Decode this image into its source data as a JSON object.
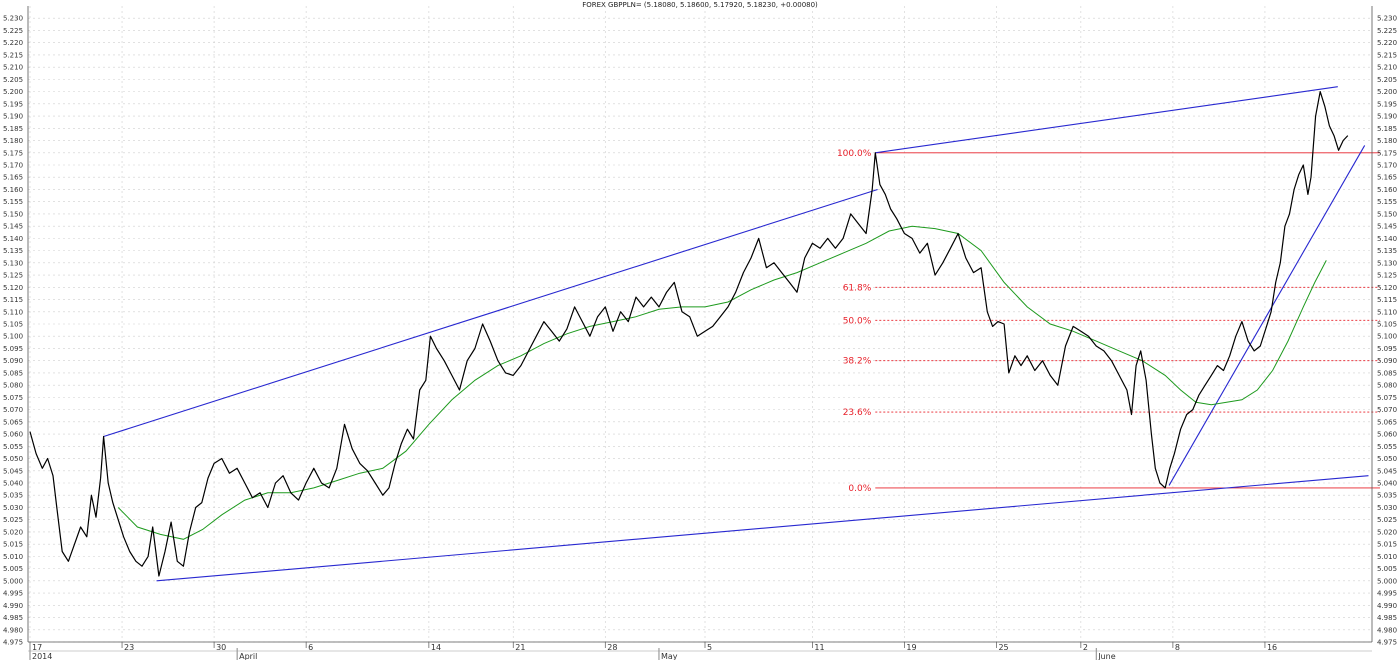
{
  "chart_data": {
    "type": "line",
    "title": "FOREX GBPPLN= (5.18080, 5.18600, 5.17920, 5.18230, +0.00080)",
    "xlabel": "",
    "ylabel": "",
    "ylim": [
      4.975,
      5.235
    ],
    "y_tick_step": 0.005,
    "grid": true,
    "price_series": {
      "name": "GBPPLN",
      "color": "#000000",
      "points": [
        [
          0,
          5.061
        ],
        [
          0.8,
          5.052
        ],
        [
          1.6,
          5.046
        ],
        [
          2.3,
          5.05
        ],
        [
          3.0,
          5.043
        ],
        [
          3.5,
          5.03
        ],
        [
          4.2,
          5.012
        ],
        [
          5.0,
          5.008
        ],
        [
          5.8,
          5.015
        ],
        [
          6.6,
          5.022
        ],
        [
          7.4,
          5.018
        ],
        [
          8.0,
          5.035
        ],
        [
          8.6,
          5.026
        ],
        [
          9.2,
          5.042
        ],
        [
          9.6,
          5.059
        ],
        [
          10.2,
          5.04
        ],
        [
          10.8,
          5.032
        ],
        [
          11.5,
          5.025
        ],
        [
          12.2,
          5.018
        ],
        [
          13.0,
          5.012
        ],
        [
          13.8,
          5.008
        ],
        [
          14.6,
          5.006
        ],
        [
          15.4,
          5.01
        ],
        [
          16.0,
          5.022
        ],
        [
          16.8,
          5.002
        ],
        [
          17.6,
          5.012
        ],
        [
          18.4,
          5.024
        ],
        [
          19.2,
          5.008
        ],
        [
          20.0,
          5.006
        ],
        [
          20.8,
          5.02
        ],
        [
          21.6,
          5.03
        ],
        [
          22.4,
          5.032
        ],
        [
          23.2,
          5.042
        ],
        [
          24.0,
          5.048
        ],
        [
          25.0,
          5.05
        ],
        [
          26.0,
          5.044
        ],
        [
          27.0,
          5.046
        ],
        [
          28.0,
          5.04
        ],
        [
          29.0,
          5.034
        ],
        [
          30.0,
          5.036
        ],
        [
          31.0,
          5.03
        ],
        [
          32.0,
          5.04
        ],
        [
          33.0,
          5.043
        ],
        [
          34.0,
          5.036
        ],
        [
          35.0,
          5.033
        ],
        [
          36.0,
          5.04
        ],
        [
          37.0,
          5.046
        ],
        [
          38.0,
          5.04
        ],
        [
          39.0,
          5.038
        ],
        [
          40.0,
          5.046
        ],
        [
          41.0,
          5.064
        ],
        [
          42.0,
          5.054
        ],
        [
          43.0,
          5.048
        ],
        [
          44.0,
          5.045
        ],
        [
          45.0,
          5.04
        ],
        [
          46.0,
          5.035
        ],
        [
          46.8,
          5.038
        ],
        [
          47.6,
          5.048
        ],
        [
          48.4,
          5.056
        ],
        [
          49.2,
          5.062
        ],
        [
          50.0,
          5.058
        ],
        [
          50.8,
          5.078
        ],
        [
          51.6,
          5.082
        ],
        [
          52.2,
          5.1
        ],
        [
          53.0,
          5.095
        ],
        [
          54.0,
          5.09
        ],
        [
          55.0,
          5.084
        ],
        [
          56.0,
          5.078
        ],
        [
          57.0,
          5.09
        ],
        [
          58.0,
          5.095
        ],
        [
          59.0,
          5.105
        ],
        [
          60.0,
          5.098
        ],
        [
          61.0,
          5.09
        ],
        [
          62.0,
          5.085
        ],
        [
          63.0,
          5.084
        ],
        [
          64.0,
          5.088
        ],
        [
          65.0,
          5.094
        ],
        [
          66.0,
          5.1
        ],
        [
          67.0,
          5.106
        ],
        [
          68.0,
          5.102
        ],
        [
          69.0,
          5.098
        ],
        [
          70.0,
          5.103
        ],
        [
          71.0,
          5.112
        ],
        [
          72.0,
          5.106
        ],
        [
          73.0,
          5.1
        ],
        [
          74.0,
          5.108
        ],
        [
          75.0,
          5.112
        ],
        [
          76.0,
          5.102
        ],
        [
          77.0,
          5.11
        ],
        [
          78.0,
          5.106
        ],
        [
          79.0,
          5.116
        ],
        [
          80.0,
          5.112
        ],
        [
          81.0,
          5.116
        ],
        [
          82.0,
          5.112
        ],
        [
          83.0,
          5.118
        ],
        [
          84.0,
          5.122
        ],
        [
          85.0,
          5.11
        ],
        [
          86.0,
          5.108
        ],
        [
          87.0,
          5.1
        ],
        [
          88.0,
          5.102
        ],
        [
          89.0,
          5.104
        ],
        [
          90.0,
          5.108
        ],
        [
          91.0,
          5.112
        ],
        [
          92.0,
          5.118
        ],
        [
          93.0,
          5.126
        ],
        [
          94.0,
          5.132
        ],
        [
          95.0,
          5.14
        ],
        [
          96.0,
          5.128
        ],
        [
          97.0,
          5.13
        ],
        [
          98.0,
          5.126
        ],
        [
          99.0,
          5.122
        ],
        [
          100.0,
          5.118
        ],
        [
          101.0,
          5.132
        ],
        [
          102.0,
          5.138
        ],
        [
          103.0,
          5.136
        ],
        [
          104.0,
          5.14
        ],
        [
          105.0,
          5.136
        ],
        [
          106.0,
          5.14
        ],
        [
          107.0,
          5.15
        ],
        [
          108.0,
          5.146
        ],
        [
          109.0,
          5.142
        ],
        [
          109.8,
          5.16
        ],
        [
          110.2,
          5.175
        ],
        [
          110.8,
          5.162
        ],
        [
          111.5,
          5.158
        ],
        [
          112.2,
          5.152
        ],
        [
          113.0,
          5.148
        ],
        [
          114.0,
          5.142
        ],
        [
          115.0,
          5.14
        ],
        [
          116.0,
          5.134
        ],
        [
          117.0,
          5.138
        ],
        [
          118.0,
          5.125
        ],
        [
          119.0,
          5.13
        ],
        [
          120.0,
          5.136
        ],
        [
          121.0,
          5.142
        ],
        [
          122.0,
          5.132
        ],
        [
          123.0,
          5.126
        ],
        [
          124.0,
          5.128
        ],
        [
          124.8,
          5.11
        ],
        [
          125.5,
          5.104
        ],
        [
          126.2,
          5.106
        ],
        [
          127.0,
          5.105
        ],
        [
          127.6,
          5.085
        ],
        [
          128.4,
          5.092
        ],
        [
          129.2,
          5.088
        ],
        [
          130.0,
          5.092
        ],
        [
          131.0,
          5.086
        ],
        [
          132.0,
          5.09
        ],
        [
          133.0,
          5.084
        ],
        [
          134.0,
          5.08
        ],
        [
          135.0,
          5.096
        ],
        [
          136.0,
          5.104
        ],
        [
          137.0,
          5.102
        ],
        [
          138.0,
          5.1
        ],
        [
          139.0,
          5.096
        ],
        [
          140.0,
          5.094
        ],
        [
          141.0,
          5.09
        ],
        [
          142.0,
          5.084
        ],
        [
          143.0,
          5.078
        ],
        [
          143.6,
          5.068
        ],
        [
          144.2,
          5.088
        ],
        [
          144.8,
          5.094
        ],
        [
          145.5,
          5.082
        ],
        [
          146.2,
          5.06
        ],
        [
          146.7,
          5.046
        ],
        [
          147.3,
          5.04
        ],
        [
          148.0,
          5.038
        ],
        [
          148.6,
          5.046
        ],
        [
          149.2,
          5.052
        ],
        [
          150.0,
          5.062
        ],
        [
          150.8,
          5.068
        ],
        [
          151.6,
          5.07
        ],
        [
          152.4,
          5.076
        ],
        [
          153.2,
          5.08
        ],
        [
          154.0,
          5.084
        ],
        [
          154.8,
          5.088
        ],
        [
          155.6,
          5.086
        ],
        [
          156.4,
          5.092
        ],
        [
          157.2,
          5.1
        ],
        [
          158.0,
          5.106
        ],
        [
          158.8,
          5.098
        ],
        [
          159.6,
          5.094
        ],
        [
          160.4,
          5.096
        ],
        [
          161.2,
          5.104
        ],
        [
          161.8,
          5.11
        ],
        [
          162.4,
          5.122
        ],
        [
          163.0,
          5.13
        ],
        [
          163.6,
          5.145
        ],
        [
          164.2,
          5.15
        ],
        [
          164.8,
          5.16
        ],
        [
          165.4,
          5.166
        ],
        [
          166.0,
          5.17
        ],
        [
          166.6,
          5.158
        ],
        [
          167.0,
          5.165
        ],
        [
          167.6,
          5.19
        ],
        [
          168.2,
          5.2
        ],
        [
          168.8,
          5.194
        ],
        [
          169.4,
          5.186
        ],
        [
          170.0,
          5.182
        ],
        [
          170.6,
          5.176
        ],
        [
          171.2,
          5.18
        ],
        [
          171.8,
          5.182
        ]
      ]
    },
    "moving_average": {
      "color": "#1e9a1e",
      "points": [
        [
          11.5,
          5.03
        ],
        [
          14,
          5.022
        ],
        [
          17,
          5.019
        ],
        [
          20,
          5.017
        ],
        [
          22.5,
          5.021
        ],
        [
          25,
          5.027
        ],
        [
          28,
          5.033
        ],
        [
          31,
          5.036
        ],
        [
          34,
          5.036
        ],
        [
          37,
          5.038
        ],
        [
          40,
          5.041
        ],
        [
          43,
          5.044
        ],
        [
          46,
          5.046
        ],
        [
          49,
          5.053
        ],
        [
          52,
          5.064
        ],
        [
          55,
          5.074
        ],
        [
          58,
          5.082
        ],
        [
          61,
          5.088
        ],
        [
          64,
          5.092
        ],
        [
          67,
          5.097
        ],
        [
          70,
          5.101
        ],
        [
          73,
          5.104
        ],
        [
          76,
          5.106
        ],
        [
          79,
          5.108
        ],
        [
          82,
          5.111
        ],
        [
          85,
          5.112
        ],
        [
          88,
          5.112
        ],
        [
          91,
          5.114
        ],
        [
          94,
          5.119
        ],
        [
          97,
          5.123
        ],
        [
          100,
          5.126
        ],
        [
          103,
          5.13
        ],
        [
          106,
          5.134
        ],
        [
          109,
          5.138
        ],
        [
          112,
          5.143
        ],
        [
          115,
          5.145
        ],
        [
          118,
          5.144
        ],
        [
          121,
          5.142
        ],
        [
          124,
          5.135
        ],
        [
          127,
          5.122
        ],
        [
          130,
          5.112
        ],
        [
          133,
          5.105
        ],
        [
          136,
          5.102
        ],
        [
          139,
          5.098
        ],
        [
          142,
          5.094
        ],
        [
          145,
          5.09
        ],
        [
          148,
          5.084
        ],
        [
          150,
          5.078
        ],
        [
          152,
          5.073
        ],
        [
          154,
          5.072
        ],
        [
          156,
          5.073
        ],
        [
          158,
          5.074
        ],
        [
          160,
          5.078
        ],
        [
          162,
          5.086
        ],
        [
          164,
          5.098
        ],
        [
          166,
          5.112
        ],
        [
          167.5,
          5.122
        ],
        [
          169,
          5.131
        ]
      ]
    },
    "trendlines": [
      {
        "color": "#2828d0",
        "from": [
          9.6,
          5.059
        ],
        "to": [
          110.5,
          5.16
        ]
      },
      {
        "color": "#2828d0",
        "from": [
          16.5,
          5.0
        ],
        "to": [
          174.5,
          5.043
        ]
      },
      {
        "color": "#2828d0",
        "from": [
          110.2,
          5.175
        ],
        "to": [
          170.5,
          5.202
        ]
      },
      {
        "color": "#2828d0",
        "from": [
          148.5,
          5.039
        ],
        "to": [
          174,
          5.178
        ]
      }
    ],
    "fibonacci": {
      "color": "#e8202a",
      "x_start": 110.2,
      "x_end": 176,
      "levels": [
        {
          "label": "100.0%",
          "value": 5.175,
          "style": "solid"
        },
        {
          "label": "61.8%",
          "value": 5.12,
          "style": "dashed"
        },
        {
          "label": "50.0%",
          "value": 5.1065,
          "style": "dashed"
        },
        {
          "label": "38.2%",
          "value": 5.09,
          "style": "dashed"
        },
        {
          "label": "23.6%",
          "value": 5.069,
          "style": "dashed"
        },
        {
          "label": "0.0%",
          "value": 5.038,
          "style": "solid"
        }
      ]
    },
    "x_range": [
      0,
      176
    ],
    "x_ticks": [
      {
        "x": 0,
        "label": "17"
      },
      {
        "x": 12,
        "label": "23"
      },
      {
        "x": 24,
        "label": "30"
      },
      {
        "x": 36,
        "label": "6"
      },
      {
        "x": 52,
        "label": "14"
      },
      {
        "x": 63,
        "label": "21"
      },
      {
        "x": 75,
        "label": "28"
      },
      {
        "x": 88,
        "label": "5"
      },
      {
        "x": 102,
        "label": "11"
      },
      {
        "x": 114,
        "label": "19"
      },
      {
        "x": 126,
        "label": "25"
      },
      {
        "x": 137,
        "label": "2"
      },
      {
        "x": 149,
        "label": "8"
      },
      {
        "x": 161,
        "label": "16"
      }
    ],
    "x_major": [
      {
        "x": 0,
        "label": "2014"
      },
      {
        "x": 27,
        "label": "April"
      },
      {
        "x": 82,
        "label": "May"
      },
      {
        "x": 139,
        "label": "June"
      }
    ]
  }
}
